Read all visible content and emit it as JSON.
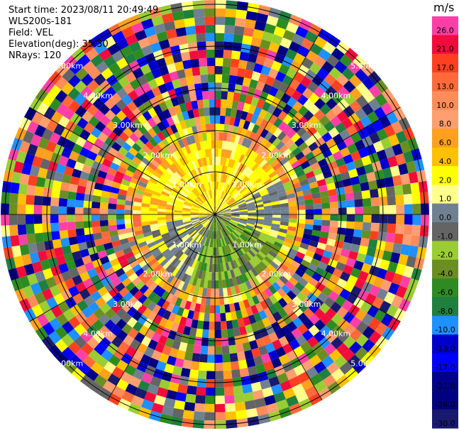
{
  "info": {
    "start_time": "Start time: 2023/08/11 20:49:49",
    "instrument": "WLS200s-181",
    "field": "Field: VEL",
    "elevation": "Elevation(deg): 35.30",
    "nrays": "NRays: 120"
  },
  "range_labels": [
    "1.00km",
    "2.00km",
    "3.00km",
    "4.00km",
    "5.00km"
  ],
  "colorbar": {
    "units": "m/s",
    "levels": [
      "26.0",
      "21.0",
      "17.0",
      "13.0",
      "10.0",
      "8.0",
      "6.0",
      "4.0",
      "2.0",
      "1.0",
      "0.0",
      "-1.0",
      "-2.0",
      "-4.0",
      "-6.0",
      "-8.0",
      "-10.0",
      "-13.0",
      "-17.0",
      "-21.0",
      "-26.0",
      "-30.0"
    ],
    "colors": [
      "#ff3fa6",
      "#f20c3c",
      "#ff4020",
      "#ff6a3a",
      "#ff8c5a",
      "#ff9e6e",
      "#ffa01e",
      "#ffc000",
      "#ffff00",
      "#ffff8a",
      "#708090",
      "#646464",
      "#9acd32",
      "#6b8e23",
      "#2e8b22",
      "#1f7f3f",
      "#1e90ff",
      "#0000cd",
      "#0000ff",
      "#00008b",
      "#000080",
      "#191970"
    ]
  }
}
